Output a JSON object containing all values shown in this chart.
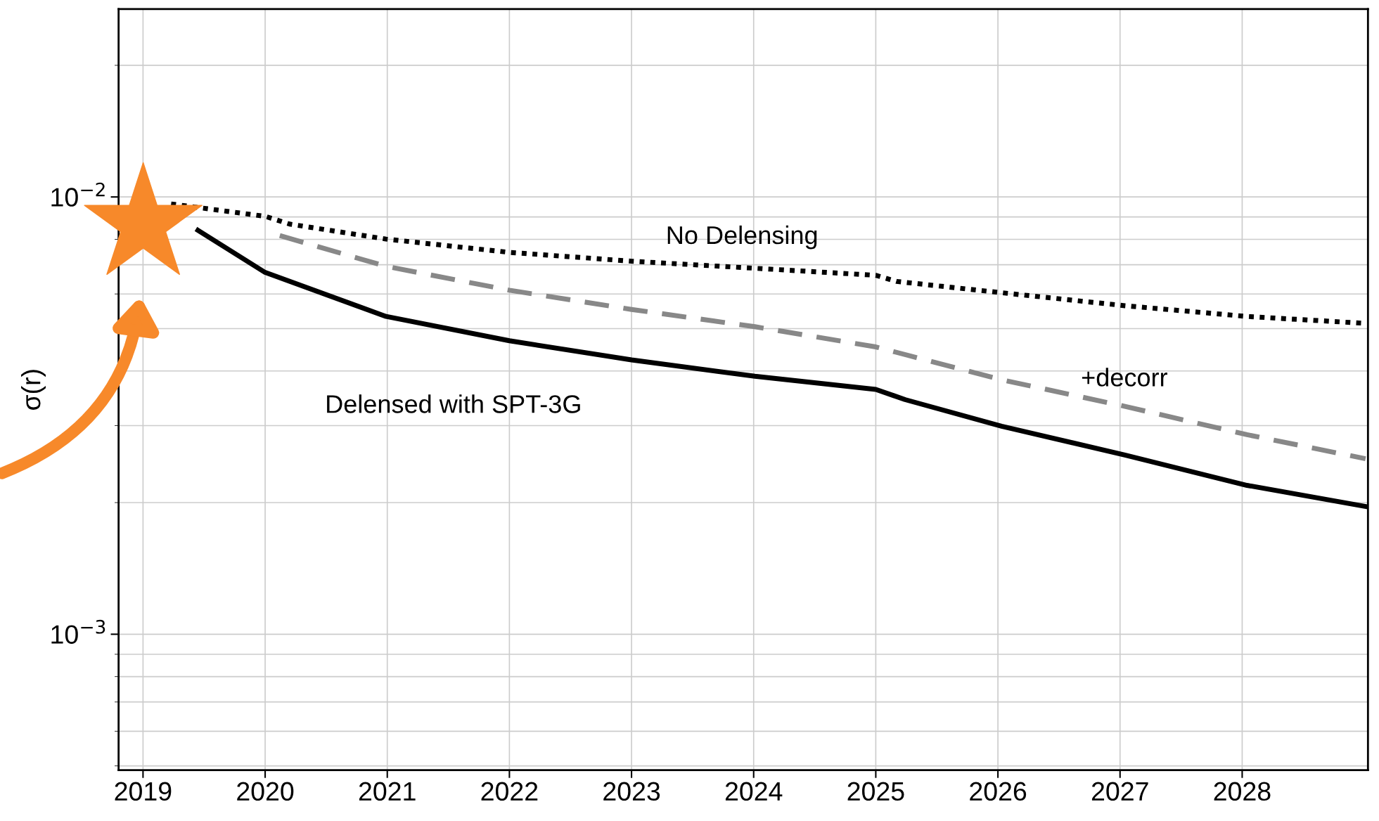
{
  "chart_data": {
    "type": "line",
    "ylabel": "σ(r)",
    "log": "y",
    "grid": true,
    "xlim": [
      2018.8,
      2029.03
    ],
    "xticks": [
      2019,
      2020,
      2021,
      2022,
      2023,
      2024,
      2025,
      2026,
      2027,
      2028
    ],
    "ylim": [
      0.000489,
      0.0269
    ],
    "yticks": [
      {
        "value": 0.001,
        "label": "10$^{−3}$"
      },
      {
        "value": 0.01,
        "label": "10$^{−2}$"
      }
    ],
    "series": [
      {
        "color": "#000000",
        "line_style": "dotted",
        "x": [
          2019.23,
          2020.0,
          2020.2,
          2020.99,
          2022.0,
          2023.0,
          2024.01,
          2025.0,
          2025.17,
          2026.03,
          2027.04,
          2028.04,
          2029.01
        ],
        "values": [
          0.00964,
          0.00903,
          0.00867,
          0.00801,
          0.00747,
          0.00713,
          0.00687,
          0.00662,
          0.00641,
          0.00604,
          0.00564,
          0.00533,
          0.00514
        ]
      },
      {
        "color": "#888888",
        "line_style": "dashed",
        "x": [
          2020.12,
          2020.99,
          2022.0,
          2023.0,
          2024.01,
          2025.0,
          2026.03,
          2027.04,
          2028.04,
          2029.01
        ],
        "values": [
          0.00816,
          0.00694,
          0.00612,
          0.00553,
          0.00505,
          0.00454,
          0.00382,
          0.00332,
          0.00286,
          0.00252
        ]
      },
      {
        "color": "#000000",
        "line_style": "solid",
        "x": [
          2019.45,
          2020.0,
          2020.99,
          2022.0,
          2023.0,
          2024.01,
          2025.0,
          2025.24,
          2026.03,
          2027.04,
          2028.04,
          2029.01
        ],
        "values": [
          0.00839,
          0.00672,
          0.00533,
          0.00469,
          0.00424,
          0.00389,
          0.00363,
          0.00344,
          0.00299,
          0.00257,
          0.00219,
          0.00196
        ]
      }
    ],
    "annotations": [
      "No Delensing",
      "+decorr",
      "Delensed with SPT-3G"
    ]
  }
}
